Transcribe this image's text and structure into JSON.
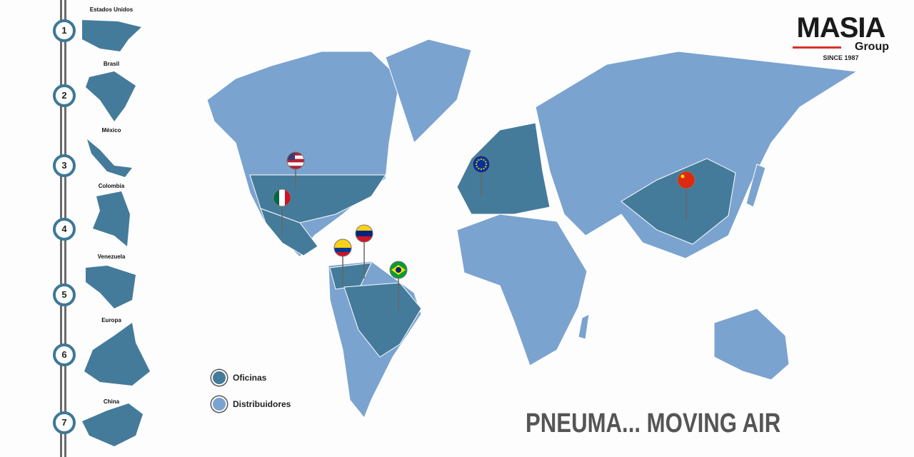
{
  "colors": {
    "offices": "#457b9a",
    "distributors": "#7ba3cf",
    "accent": "#d9302a"
  },
  "sidebar": [
    {
      "number": "1",
      "label": "Estados Unidos"
    },
    {
      "number": "2",
      "label": "Brasil"
    },
    {
      "number": "3",
      "label": "México"
    },
    {
      "number": "4",
      "label": "Colombia"
    },
    {
      "number": "5",
      "label": "Venezuela"
    },
    {
      "number": "6",
      "label": "Europa"
    },
    {
      "number": "7",
      "label": "China"
    }
  ],
  "logo": {
    "name": "MASIA",
    "sub": "Group",
    "since": "SINCE 1987"
  },
  "legend": {
    "offices": "Oficinas",
    "distributors": "Distribuidores"
  },
  "slogan": "PNEUMA... MOVING AIR",
  "pins": [
    {
      "country": "united-states",
      "flag": "us-flag-icon"
    },
    {
      "country": "mexico",
      "flag": "mexico-flag-icon"
    },
    {
      "country": "colombia",
      "flag": "colombia-flag-icon"
    },
    {
      "country": "venezuela",
      "flag": "venezuela-flag-icon"
    },
    {
      "country": "brazil",
      "flag": "brazil-flag-icon"
    },
    {
      "country": "europe",
      "flag": "eu-flag-icon"
    },
    {
      "country": "china",
      "flag": "china-flag-icon"
    }
  ]
}
